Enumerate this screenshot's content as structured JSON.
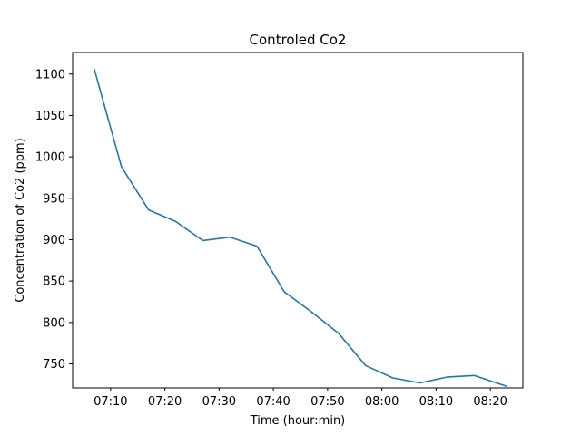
{
  "chart_data": {
    "type": "line",
    "title": "Controled Co2",
    "xlabel": "Time (hour:min)",
    "ylabel": "Concentration of Co2 (ppm)",
    "x_ticks": [
      "07:10",
      "07:20",
      "07:30",
      "07:40",
      "07:50",
      "08:00",
      "08:10",
      "08:20"
    ],
    "x_tick_minutes": [
      430,
      440,
      450,
      460,
      470,
      480,
      490,
      500
    ],
    "y_ticks": [
      750,
      800,
      850,
      900,
      950,
      1000,
      1050,
      1100
    ],
    "xlim": [
      "07:03",
      "08:26"
    ],
    "ylim": [
      721,
      1126
    ],
    "grid": false,
    "color": "#1f77b4",
    "series": [
      {
        "x": [
          "07:07",
          "07:12",
          "07:17",
          "07:22",
          "07:27",
          "07:32",
          "07:37",
          "07:42",
          "07:47",
          "07:52",
          "07:57",
          "08:02",
          "08:07",
          "08:12",
          "08:17",
          "08:23"
        ],
        "x_minutes": [
          427,
          432,
          437,
          442,
          447,
          452,
          457,
          462,
          467,
          472,
          477,
          482,
          487,
          492,
          497,
          503
        ],
        "values": [
          1106,
          988,
          936,
          922,
          899,
          903,
          892,
          837,
          813,
          787,
          748,
          733,
          727,
          734,
          736,
          723
        ]
      }
    ]
  }
}
